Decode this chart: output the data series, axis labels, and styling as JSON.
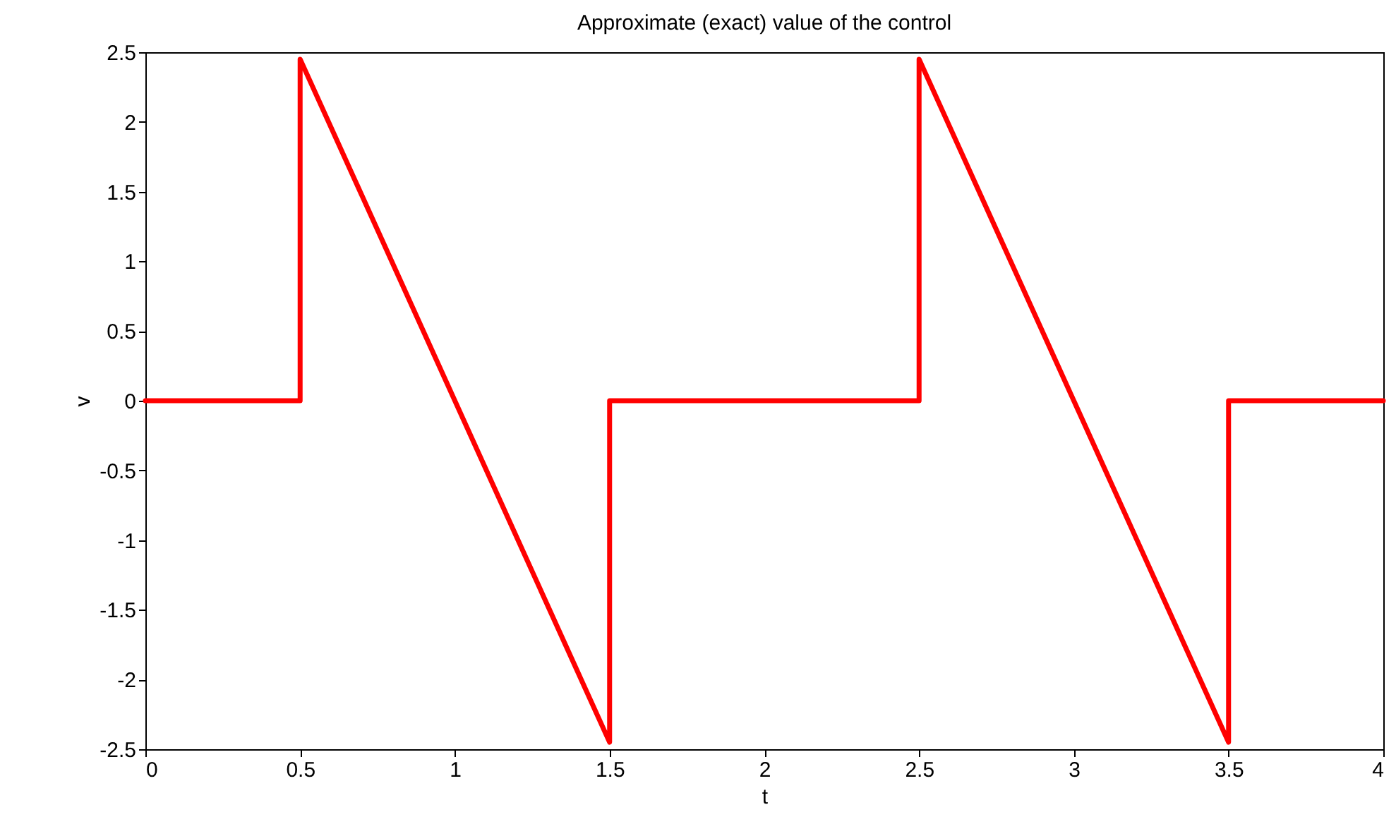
{
  "chart_data": {
    "type": "line",
    "title": "Approximate (exact) value of the control",
    "xlabel": "t",
    "ylabel": "v",
    "x": [
      0,
      0.5,
      0.5,
      1.5,
      1.5,
      2.5,
      2.5,
      3.5,
      3.5,
      4
    ],
    "series": [
      {
        "color": "#ff0000",
        "values": [
          0,
          0,
          2.45,
          -2.45,
          0,
          0,
          2.45,
          -2.45,
          0,
          0
        ]
      }
    ],
    "xlim": [
      0,
      4
    ],
    "xticks": [
      0,
      0.5,
      1,
      1.5,
      2,
      2.5,
      3,
      3.5,
      4
    ],
    "ylim": [
      -2.5,
      2.5
    ],
    "yticks": [
      -2.5,
      -2,
      -1.5,
      -1,
      -0.5,
      0,
      0.5,
      1,
      1.5,
      2,
      2.5
    ],
    "grid": false,
    "line_style": "solid",
    "marker": "none"
  }
}
